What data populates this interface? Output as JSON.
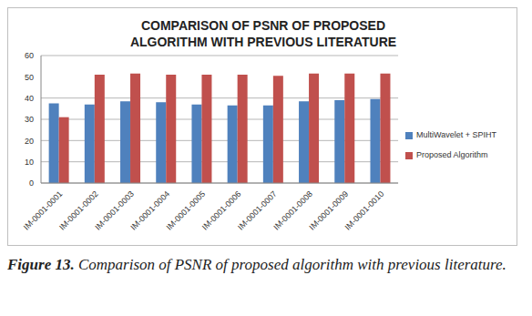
{
  "chart_data": {
    "type": "bar",
    "title": "COMPARISON OF PSNR OF PROPOSED ALGORITHM WITH PREVIOUS LITERATURE",
    "caption": "Figure 13. Comparison of PSNR of proposed algorithm with previous literature.",
    "categories": [
      "IM-0001-0001",
      "IM-0001-0002",
      "IM-0001-0003",
      "IM-0001-0004",
      "IM-0001-0005",
      "IM-0001-0006",
      "IM-0001-0007",
      "IM-0001-0008",
      "IM-0001-0009",
      "IM-0001-0010"
    ],
    "series": [
      {
        "name": "MultiWavelet + SPIHT",
        "color": "#4f81bd",
        "values": [
          37.5,
          37,
          38.5,
          38,
          37,
          36.5,
          36.5,
          38.5,
          39,
          39.5
        ]
      },
      {
        "name": "Proposed Algorithm",
        "color": "#c0504d",
        "values": [
          31,
          51,
          51.5,
          51,
          51,
          51,
          50.5,
          51.5,
          51.5,
          51.5
        ]
      }
    ],
    "ylim": [
      0,
      60
    ],
    "yticks": [
      0,
      10,
      20,
      30,
      40,
      50,
      60
    ],
    "grid": true,
    "legend": "right"
  }
}
